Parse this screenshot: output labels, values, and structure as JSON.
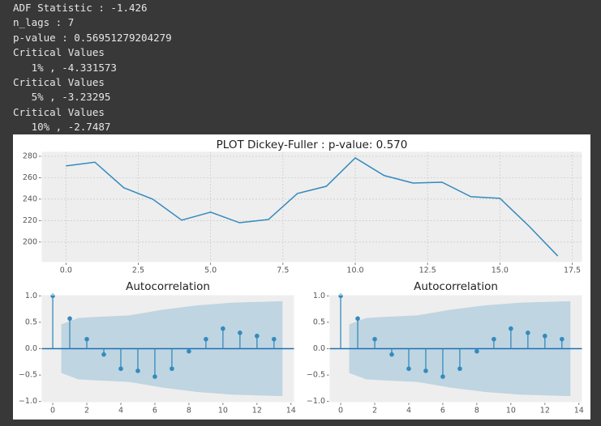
{
  "output_lines": [
    "ADF Statistic : -1.426",
    "n_lags : 7",
    "p-value : 0.56951279204279",
    "Critical Values",
    "   1% , -4.331573",
    "Critical Values",
    "   5% , -3.23295",
    "Critical Values",
    "   10% , -2.7487"
  ],
  "chart_data": [
    {
      "type": "line",
      "title": "PLOT Dickey-Fuller : p-value: 0.570",
      "color": "#348abd",
      "grid": true,
      "x": [
        0,
        1,
        2,
        3,
        4,
        5,
        6,
        7,
        8,
        9,
        10,
        11,
        12,
        13,
        14,
        15,
        16,
        17
      ],
      "values": [
        271,
        274.5,
        250.6,
        240,
        220.4,
        227.9,
        218,
        221,
        245.3,
        252,
        278.5,
        262,
        255,
        255.8,
        242.3,
        240.8,
        215,
        187
      ],
      "xlim": [
        -0.85,
        17.85
      ],
      "ylim": [
        181,
        284.5
      ],
      "xticks": [
        {
          "value": 0,
          "label": "0.0"
        },
        2.5,
        {
          "value": 5,
          "label": "5.0"
        },
        7.5,
        {
          "value": 10,
          "label": "10.0"
        },
        12.5,
        {
          "value": 15,
          "label": "15.0"
        },
        17.5
      ],
      "yticks": [
        200,
        220,
        240,
        260,
        280
      ]
    },
    {
      "type": "stem",
      "title": "Autocorrelation",
      "color": "#348abd",
      "grid": false,
      "x": [
        0,
        1,
        2,
        3,
        4,
        5,
        6,
        7,
        8,
        9,
        10,
        11,
        12,
        13
      ],
      "values": [
        1.0,
        0.57,
        0.18,
        -0.11,
        -0.38,
        -0.42,
        -0.53,
        -0.38,
        -0.05,
        0.18,
        0.38,
        0.3,
        0.24,
        0.18
      ],
      "band": {
        "x": [
          0.5,
          1.5,
          2.5,
          4.5,
          6.5,
          8.5,
          10.5,
          13.5
        ],
        "upper": [
          0.46,
          0.58,
          0.6,
          0.63,
          0.74,
          0.82,
          0.87,
          0.9
        ],
        "lower": [
          -0.46,
          -0.58,
          -0.6,
          -0.63,
          -0.74,
          -0.82,
          -0.87,
          -0.9
        ]
      },
      "xlim": [
        -0.67,
        14.2
      ],
      "ylim": [
        -1.02,
        1.02
      ],
      "xticks": [
        0,
        2,
        4,
        6,
        8,
        10,
        12,
        14
      ],
      "yticks": [
        {
          "value": 1,
          "label": "1.0"
        },
        0.5,
        {
          "value": 0,
          "label": "0.0"
        },
        {
          "value": -0.5,
          "label": "−0.5"
        },
        {
          "value": -1,
          "label": "−1.0"
        }
      ]
    },
    {
      "type": "stem",
      "title": "Autocorrelation",
      "color": "#348abd",
      "grid": false,
      "x": [
        0,
        1,
        2,
        3,
        4,
        5,
        6,
        7,
        8,
        9,
        10,
        11,
        12,
        13
      ],
      "values": [
        1.0,
        0.57,
        0.18,
        -0.11,
        -0.38,
        -0.42,
        -0.53,
        -0.38,
        -0.05,
        0.18,
        0.38,
        0.3,
        0.24,
        0.18
      ],
      "band": {
        "x": [
          0.5,
          1.5,
          2.5,
          4.5,
          6.5,
          8.5,
          10.5,
          13.5
        ],
        "upper": [
          0.46,
          0.58,
          0.6,
          0.63,
          0.74,
          0.82,
          0.87,
          0.9
        ],
        "lower": [
          -0.46,
          -0.58,
          -0.6,
          -0.63,
          -0.74,
          -0.82,
          -0.87,
          -0.9
        ]
      },
      "xlim": [
        -0.67,
        14.2
      ],
      "ylim": [
        -1.02,
        1.02
      ],
      "xticks": [
        0,
        2,
        4,
        6,
        8,
        10,
        12,
        14
      ],
      "yticks": [
        {
          "value": 1,
          "label": "1.0"
        },
        0.5,
        {
          "value": 0,
          "label": "0.0"
        },
        {
          "value": -0.5,
          "label": "−0.5"
        },
        {
          "value": -1,
          "label": "−1.0"
        }
      ]
    }
  ]
}
